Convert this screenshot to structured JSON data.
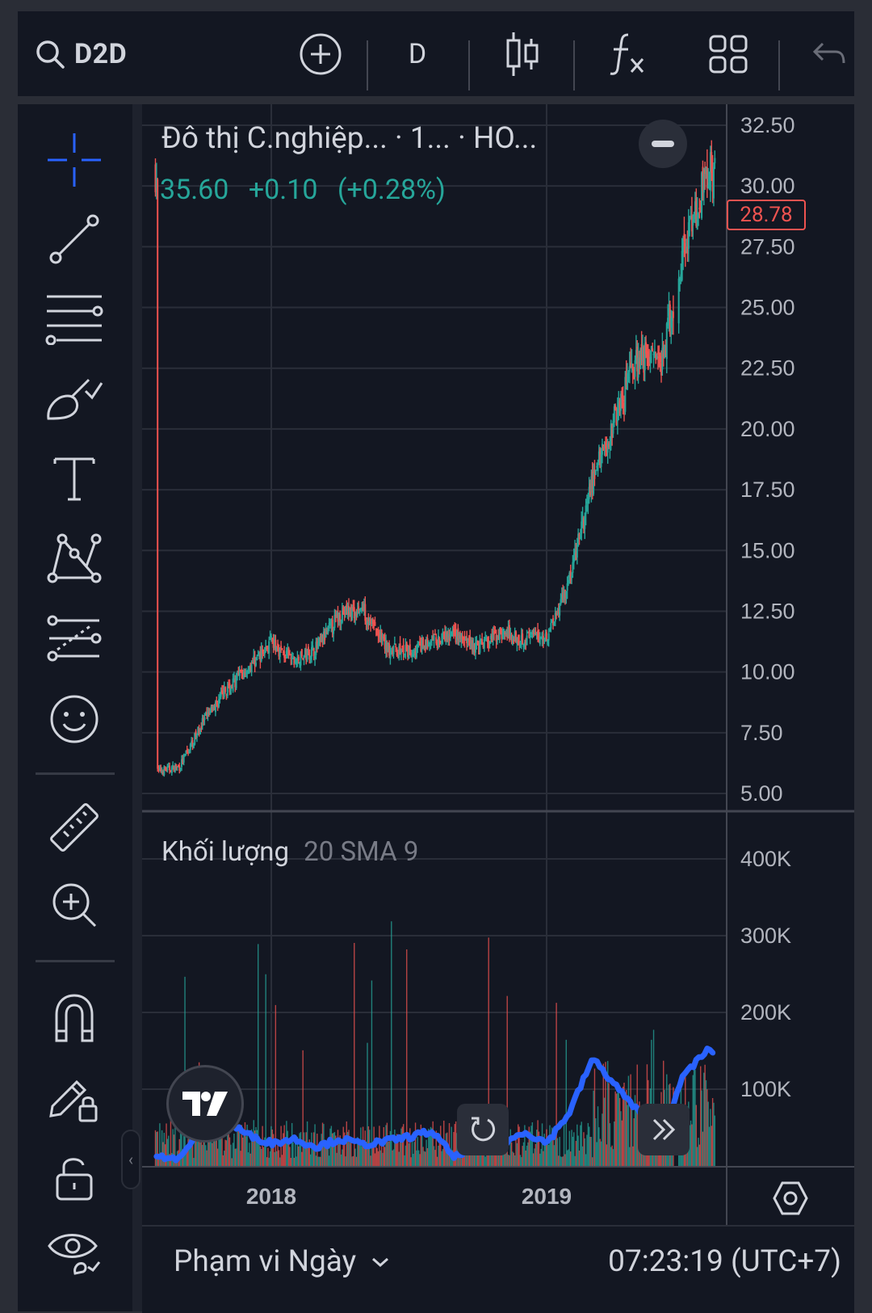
{
  "toolbar": {
    "symbol": "D2D",
    "interval": "D"
  },
  "legend": {
    "title": "Đô thị C.nghiệp... · 1... · HO...",
    "last_price": "35.60",
    "change": "+0.10",
    "change_pct": "(+0.28%)"
  },
  "price_tag": "28.78",
  "volume_pane": {
    "label": "Khối lượng",
    "params": "20 SMA 9"
  },
  "bottom_bar": {
    "range_label": "Phạm vi Ngày",
    "clock": "07:23:19 (UTC+7)"
  },
  "colors": {
    "up": "#26a69a",
    "down": "#ef5350",
    "volume_ma": "#2962ff",
    "accent": "#2962ff",
    "background": "#131722"
  },
  "chart_data": [
    {
      "type": "candlestick",
      "yticks": [
        "32.50",
        "30.00",
        "27.50",
        "25.00",
        "22.50",
        "20.00",
        "17.50",
        "15.00",
        "12.50",
        "10.00",
        "7.50",
        "5.00"
      ],
      "xticks": [
        "2018",
        "2019"
      ],
      "ylim": [
        5.0,
        32.5
      ],
      "close_series_approx": [
        [
          "2017-08",
          5.9
        ],
        [
          "2017-09",
          6.1
        ],
        [
          "2017-10",
          7.9
        ],
        [
          "2017-11",
          9.2
        ],
        [
          "2017-12",
          10.2
        ],
        [
          "2018-01",
          11.2
        ],
        [
          "2018-02",
          10.4
        ],
        [
          "2018-03",
          11.0
        ],
        [
          "2018-04",
          12.4
        ],
        [
          "2018-05",
          12.6
        ],
        [
          "2018-06",
          11.0
        ],
        [
          "2018-07",
          10.8
        ],
        [
          "2018-08",
          11.2
        ],
        [
          "2018-09",
          11.5
        ],
        [
          "2018-10",
          11.0
        ],
        [
          "2018-11",
          11.6
        ],
        [
          "2018-12",
          11.4
        ],
        [
          "2019-01",
          11.5
        ],
        [
          "2019-02",
          13.8
        ],
        [
          "2019-03",
          17.8
        ],
        [
          "2019-04",
          20.5
        ],
        [
          "2019-05",
          23.0
        ],
        [
          "2019-06",
          22.8
        ],
        [
          "2019-07",
          27.5
        ],
        [
          "2019-08",
          30.6
        ]
      ]
    },
    {
      "type": "bar",
      "series": [
        {
          "name": "Khối lượng",
          "values": []
        },
        {
          "name": "SMA 9",
          "values": []
        }
      ],
      "yticks": [
        "400K",
        "300K",
        "200K",
        "100K"
      ],
      "sma_series_approx": [
        [
          "2017-08",
          15
        ],
        [
          "2017-09",
          8
        ],
        [
          "2017-10",
          55
        ],
        [
          "2017-11",
          60
        ],
        [
          "2017-12",
          40
        ],
        [
          "2018-01",
          30
        ],
        [
          "2018-02",
          35
        ],
        [
          "2018-03",
          25
        ],
        [
          "2018-04",
          35
        ],
        [
          "2018-05",
          28
        ],
        [
          "2018-06",
          32
        ],
        [
          "2018-07",
          38
        ],
        [
          "2018-08",
          45
        ],
        [
          "2018-09",
          10
        ],
        [
          "2018-10",
          35
        ],
        [
          "2018-11",
          25
        ],
        [
          "2018-12",
          45
        ],
        [
          "2019-01",
          30
        ],
        [
          "2019-02",
          70
        ],
        [
          "2019-03",
          140
        ],
        [
          "2019-04",
          105
        ],
        [
          "2019-05",
          70
        ],
        [
          "2019-06",
          35
        ],
        [
          "2019-07",
          120
        ],
        [
          "2019-08",
          150
        ]
      ]
    }
  ]
}
